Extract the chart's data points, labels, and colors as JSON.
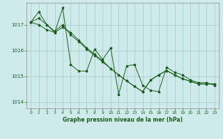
{
  "title": "Graphe pression niveau de la mer (hPa)",
  "background_color": "#ceeaea",
  "grid_color": "#aacece",
  "line_color": "#1a5c1a",
  "text_color": "#1a5c1a",
  "xlim": [
    -0.5,
    23.5
  ],
  "ylim": [
    1013.75,
    1017.85
  ],
  "yticks": [
    1014,
    1015,
    1016,
    1017
  ],
  "xticks": [
    0,
    1,
    2,
    3,
    4,
    5,
    6,
    7,
    8,
    9,
    10,
    11,
    12,
    13,
    14,
    15,
    16,
    17,
    18,
    19,
    20,
    21,
    22,
    23
  ],
  "series1": [
    1017.1,
    1017.5,
    1017.0,
    1016.7,
    1017.65,
    1015.45,
    1015.2,
    1015.2,
    1016.05,
    1015.65,
    1016.1,
    1014.3,
    1015.4,
    1015.45,
    1014.65,
    1014.45,
    1014.4,
    1015.35,
    1015.15,
    1015.05,
    1014.85,
    1014.75,
    1014.75,
    1014.65
  ],
  "series2": [
    1017.1,
    1017.25,
    1017.0,
    1016.75,
    1017.0,
    1016.6,
    1016.35,
    1016.05,
    1015.8,
    1015.55,
    1015.3,
    1015.05,
    1014.82,
    1014.6,
    1014.4,
    1014.85,
    1015.05,
    1015.22,
    1015.05,
    1014.9,
    1014.8,
    1014.7,
    1014.7,
    1014.7
  ],
  "series3": [
    1017.1,
    1017.0,
    1016.8,
    1016.7,
    1016.9,
    1016.7,
    1016.4,
    1016.1,
    1015.85,
    1015.6,
    1015.3,
    1015.05,
    1014.82,
    1014.6,
    1014.4,
    1014.85,
    1015.05,
    1015.22,
    1015.05,
    1014.9,
    1014.8,
    1014.7,
    1014.7,
    1014.7
  ]
}
